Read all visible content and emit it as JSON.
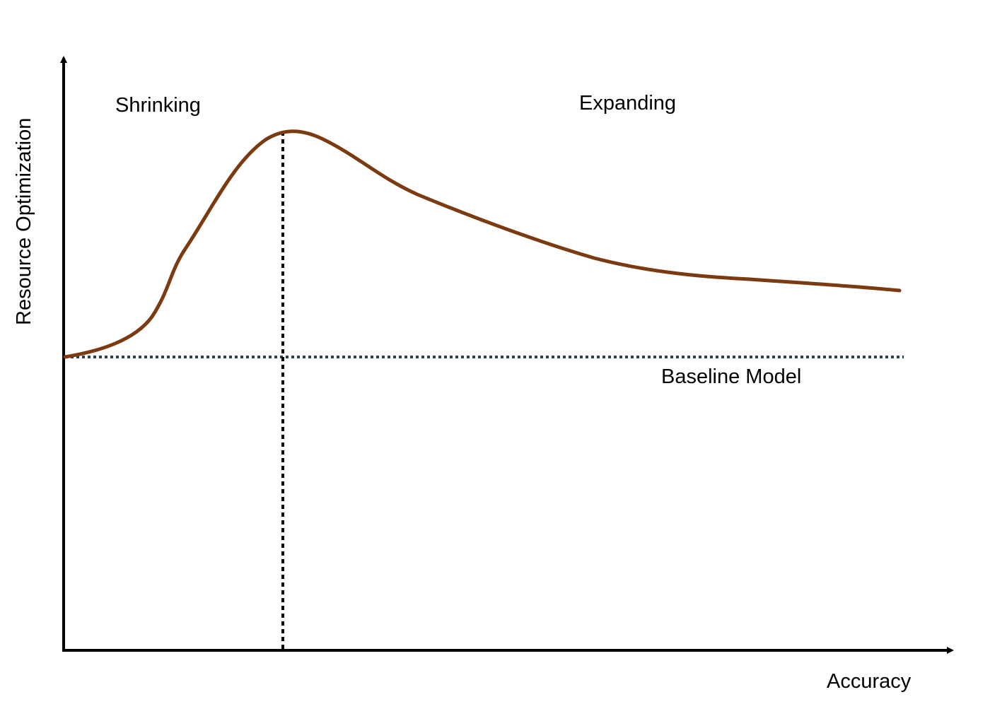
{
  "labels": {
    "x_axis": "Accuracy",
    "y_axis": "Resource Optimization",
    "region_left": "Shrinking",
    "region_right": "Expanding",
    "baseline": "Baseline Model"
  },
  "colors": {
    "curve": "#7b3a10",
    "baseline": "#2f3d57",
    "axes": "#000000",
    "peak_marker": "#000000"
  }
}
